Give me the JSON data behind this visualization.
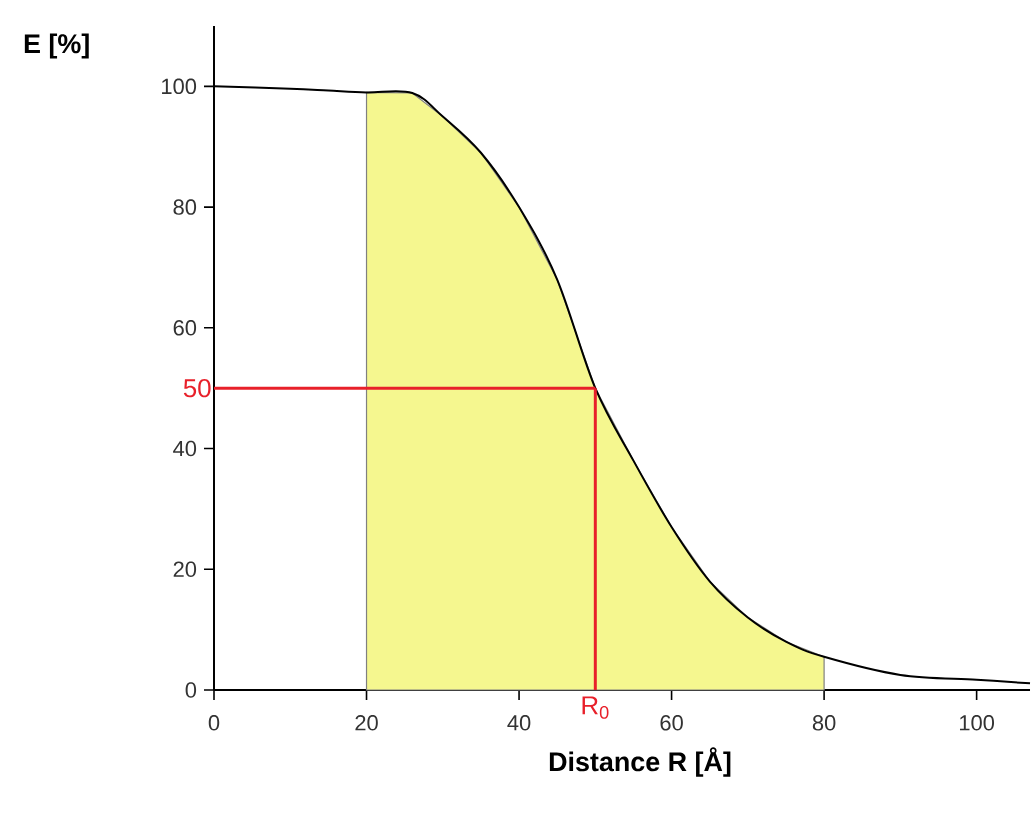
{
  "chart_data": {
    "type": "line",
    "xlabel": "Distance R [Å]",
    "ylabel": "E [%]",
    "xlim": [
      0,
      107
    ],
    "ylim": [
      0,
      110
    ],
    "xticks": [
      0,
      20,
      40,
      60,
      80,
      100
    ],
    "yticks": [
      0,
      20,
      40,
      60,
      80,
      100
    ],
    "series": [
      {
        "type": "area",
        "color": "#f5f78f",
        "x": [
          20,
          26,
          30,
          35,
          40,
          45,
          50,
          55,
          60,
          65,
          70,
          75,
          80
        ],
        "values": [
          99,
          98.9,
          95,
          89,
          80,
          68,
          50,
          38,
          27,
          18,
          12,
          8,
          5.5
        ]
      },
      {
        "type": "line",
        "color": "#000000",
        "x": [
          0,
          10,
          15,
          20,
          26,
          30,
          35,
          40,
          45,
          50,
          55,
          60,
          65,
          70,
          75,
          80,
          90,
          100,
          107
        ],
        "values": [
          100,
          99.6,
          99.3,
          99,
          98.9,
          95,
          89,
          80,
          68,
          50,
          38,
          27,
          18,
          12,
          8,
          5.5,
          2.5,
          1.7,
          1.1
        ]
      }
    ],
    "ref_lines": [
      {
        "axis": "y",
        "value": 50,
        "label": "50",
        "color": "#e8202a"
      },
      {
        "axis": "x",
        "value": 50,
        "label": "R$_{0}$",
        "color": "#e8202a"
      }
    ]
  }
}
